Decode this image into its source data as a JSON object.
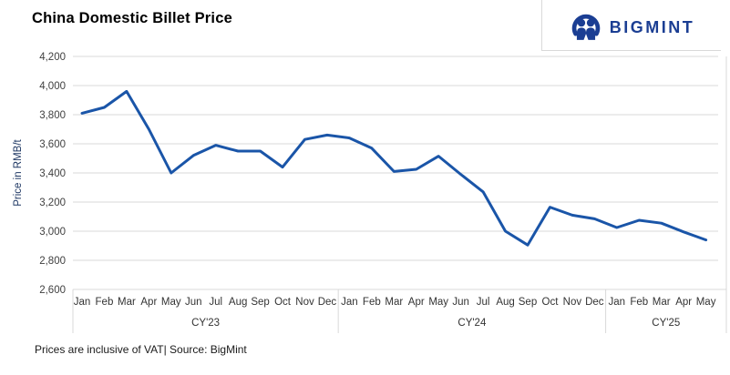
{
  "header": {
    "title": "China Domestic Billet Price",
    "logo_text": "BIGMINT",
    "logo_color": "#1b3e93"
  },
  "footer": {
    "note": "Prices are inclusive of VAT| Source: BigMint"
  },
  "chart_data": {
    "type": "line",
    "title": "China Domestic Billet Price",
    "ylabel": "Price in RMB/t",
    "ylim": [
      2600,
      4200
    ],
    "ytick_values": [
      2600,
      2800,
      3000,
      3200,
      3400,
      3600,
      3800,
      4000,
      4200
    ],
    "ytick_labels": [
      "2,600",
      "2,800",
      "3,000",
      "3,200",
      "3,400",
      "3,600",
      "3,800",
      "4,000",
      "4,200"
    ],
    "grid": "horizontal gridlines on, light gray",
    "legend": "none",
    "line_color": "#1a55a8",
    "grid_color": "#d9d9d9",
    "axis_text_color": "#404040",
    "year_groups": [
      {
        "label": "CY'23",
        "months": [
          "Jan",
          "Feb",
          "Mar",
          "Apr",
          "May",
          "Jun",
          "Jul",
          "Aug",
          "Sep",
          "Oct",
          "Nov",
          "Dec"
        ],
        "values": [
          3810,
          3850,
          3960,
          3700,
          3400,
          3520,
          3590,
          3550,
          3550,
          3440,
          3630,
          3660
        ]
      },
      {
        "label": "CY'24",
        "months": [
          "Jan",
          "Feb",
          "Mar",
          "Apr",
          "May",
          "Jun",
          "Jul",
          "Aug",
          "Sep",
          "Oct",
          "Nov",
          "Dec"
        ],
        "values": [
          3640,
          3570,
          3410,
          3425,
          3515,
          3390,
          3270,
          3000,
          2905,
          3165,
          3110,
          3085
        ]
      },
      {
        "label": "CY'25",
        "months": [
          "Jan",
          "Feb",
          "Mar",
          "Apr",
          "May"
        ],
        "values": [
          3025,
          3075,
          3055,
          2995,
          2940
        ]
      }
    ]
  }
}
